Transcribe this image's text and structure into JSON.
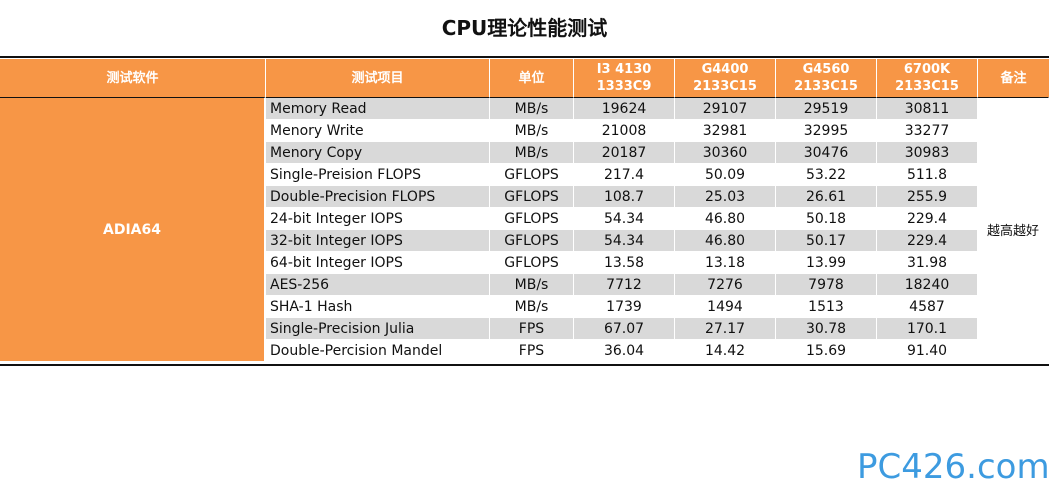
{
  "title": "CPU理论性能测试",
  "table": {
    "headers": {
      "software": "测试软件",
      "item": "测试项目",
      "unit": "单位",
      "cpus": [
        {
          "line1": "I3 4130",
          "line2": "1333C9"
        },
        {
          "line1": "G4400",
          "line2": "2133C15"
        },
        {
          "line1": "G4560",
          "line2": "2133C15"
        },
        {
          "line1": "6700K",
          "line2": "2133C15"
        }
      ],
      "note": "备注"
    },
    "software": "ADIA64",
    "note": "越高越好",
    "rows": [
      {
        "item": "Memory Read",
        "unit": "MB/s",
        "values": [
          "19624",
          "29107",
          "29519",
          "30811"
        ]
      },
      {
        "item": "Menory Write",
        "unit": "MB/s",
        "values": [
          "21008",
          "32981",
          "32995",
          "33277"
        ]
      },
      {
        "item": "Menory Copy",
        "unit": "MB/s",
        "values": [
          "20187",
          "30360",
          "30476",
          "30983"
        ]
      },
      {
        "item": "Single-Preision FLOPS",
        "unit": "GFLOPS",
        "values": [
          "217.4",
          "50.09",
          "53.22",
          "511.8"
        ]
      },
      {
        "item": "Double-Precision FLOPS",
        "unit": "GFLOPS",
        "values": [
          "108.7",
          "25.03",
          "26.61",
          "255.9"
        ]
      },
      {
        "item": "24-bit Integer IOPS",
        "unit": "GFLOPS",
        "values": [
          "54.34",
          "46.80",
          "50.18",
          "229.4"
        ]
      },
      {
        "item": "32-bit Integer IOPS",
        "unit": "GFLOPS",
        "values": [
          "54.34",
          "46.80",
          "50.17",
          "229.4"
        ]
      },
      {
        "item": "64-bit Integer IOPS",
        "unit": "GFLOPS",
        "values": [
          "13.58",
          "13.18",
          "13.99",
          "31.98"
        ]
      },
      {
        "item": "AES-256",
        "unit": "MB/s",
        "values": [
          "7712",
          "7276",
          "7978",
          "18240"
        ]
      },
      {
        "item": "SHA-1 Hash",
        "unit": "MB/s",
        "values": [
          "1739",
          "1494",
          "1513",
          "4587"
        ]
      },
      {
        "item": "Single-Precision Julia",
        "unit": "FPS",
        "values": [
          "67.07",
          "27.17",
          "30.78",
          "170.1"
        ]
      },
      {
        "item": "Double-Percision Mandel",
        "unit": "FPS",
        "values": [
          "36.04",
          "14.42",
          "15.69",
          "91.40"
        ]
      }
    ]
  },
  "colors": {
    "header_orange": "#f79646",
    "row_gray": "#d9d9d9",
    "logo_blue": "#3d9be0",
    "logo_dark": "#1f5f9e"
  },
  "watermark": {
    "text": "PC426.com",
    "icon": "pc426-logo"
  }
}
